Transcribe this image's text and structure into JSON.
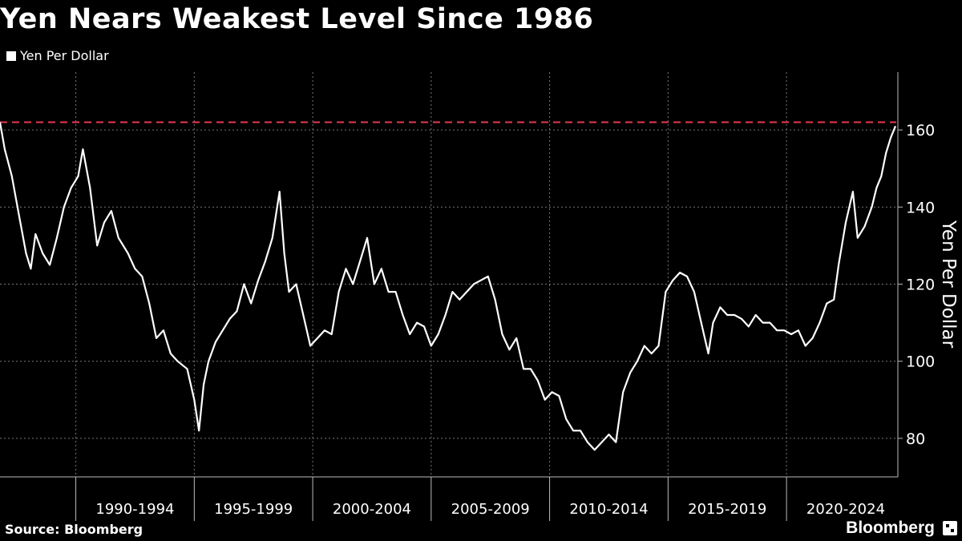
{
  "header": {
    "title": "Yen Nears Weakest Level Since 1986"
  },
  "legend": {
    "label": "Yen Per Dollar"
  },
  "footer": {
    "source": "Source: Bloomberg",
    "brand": "Bloomberg"
  },
  "colors": {
    "background": "#000000",
    "line": "#ffffff",
    "reference_line": "#e8384f",
    "grid": "#777777"
  },
  "chart_data": {
    "type": "line",
    "title": "Yen Nears Weakest Level Since 1986",
    "ylabel": "Yen Per Dollar",
    "xlabel": "",
    "x_range": [
      1986.8,
      2024.7
    ],
    "ylim": [
      70,
      175
    ],
    "y_ticks": [
      80,
      100,
      120,
      140,
      160
    ],
    "x_tick_boundaries": [
      1990,
      1995,
      2000,
      2005,
      2010,
      2015,
      2020,
      2025
    ],
    "x_tick_labels": [
      "1990-1994",
      "1995-1999",
      "2000-2004",
      "2005-2009",
      "2010-2014",
      "2015-2019",
      "2020-2024"
    ],
    "grid": "vertical-dashed",
    "legend_position": "top-left",
    "y_axis_position": "right",
    "reference_line": {
      "value": 162,
      "style": "dashed"
    },
    "series": [
      {
        "name": "Yen Per Dollar",
        "x": [
          1986.8,
          1987.0,
          1987.3,
          1987.6,
          1987.9,
          1988.1,
          1988.3,
          1988.6,
          1988.9,
          1989.2,
          1989.5,
          1989.8,
          1990.1,
          1990.3,
          1990.6,
          1990.9,
          1991.2,
          1991.5,
          1991.8,
          1992.2,
          1992.5,
          1992.8,
          1993.1,
          1993.4,
          1993.7,
          1994.0,
          1994.3,
          1994.7,
          1995.0,
          1995.2,
          1995.4,
          1995.6,
          1995.9,
          1996.2,
          1996.5,
          1996.8,
          1997.1,
          1997.4,
          1997.7,
          1998.0,
          1998.3,
          1998.6,
          1998.8,
          1999.0,
          1999.3,
          1999.6,
          1999.9,
          2000.2,
          2000.5,
          2000.8,
          2001.1,
          2001.4,
          2001.7,
          2002.0,
          2002.3,
          2002.6,
          2002.9,
          2003.2,
          2003.5,
          2003.8,
          2004.1,
          2004.4,
          2004.7,
          2005.0,
          2005.3,
          2005.6,
          2005.9,
          2006.2,
          2006.5,
          2006.8,
          2007.1,
          2007.4,
          2007.7,
          2008.0,
          2008.3,
          2008.6,
          2008.9,
          2009.2,
          2009.5,
          2009.8,
          2010.1,
          2010.4,
          2010.7,
          2011.0,
          2011.3,
          2011.6,
          2011.9,
          2012.2,
          2012.5,
          2012.8,
          2013.1,
          2013.4,
          2013.7,
          2014.0,
          2014.3,
          2014.6,
          2014.9,
          2015.2,
          2015.5,
          2015.8,
          2016.1,
          2016.4,
          2016.7,
          2016.9,
          2017.2,
          2017.5,
          2017.8,
          2018.1,
          2018.4,
          2018.7,
          2019.0,
          2019.3,
          2019.6,
          2019.9,
          2020.2,
          2020.5,
          2020.8,
          2021.1,
          2021.4,
          2021.7,
          2022.0,
          2022.2,
          2022.5,
          2022.8,
          2023.0,
          2023.3,
          2023.6,
          2023.8,
          2024.0,
          2024.2,
          2024.4,
          2024.6
        ],
        "values": [
          162,
          155,
          148,
          138,
          128,
          124,
          133,
          128,
          125,
          132,
          140,
          145,
          148,
          155,
          145,
          130,
          136,
          139,
          132,
          128,
          124,
          122,
          115,
          106,
          108,
          102,
          100,
          98,
          90,
          82,
          94,
          100,
          105,
          108,
          111,
          113,
          120,
          115,
          121,
          126,
          132,
          144,
          128,
          118,
          120,
          112,
          104,
          106,
          108,
          107,
          118,
          124,
          120,
          126,
          132,
          120,
          124,
          118,
          118,
          112,
          107,
          110,
          109,
          104,
          107,
          112,
          118,
          116,
          118,
          120,
          121,
          122,
          116,
          107,
          103,
          106,
          98,
          98,
          95,
          90,
          92,
          91,
          85,
          82,
          82,
          79,
          77,
          79,
          81,
          79,
          92,
          97,
          100,
          104,
          102,
          104,
          118,
          121,
          123,
          122,
          118,
          110,
          102,
          110,
          114,
          112,
          112,
          111,
          109,
          112,
          110,
          110,
          108,
          108,
          107,
          108,
          104,
          106,
          110,
          115,
          116,
          125,
          136,
          144,
          132,
          135,
          140,
          145,
          148,
          154,
          158,
          161
        ]
      }
    ]
  }
}
